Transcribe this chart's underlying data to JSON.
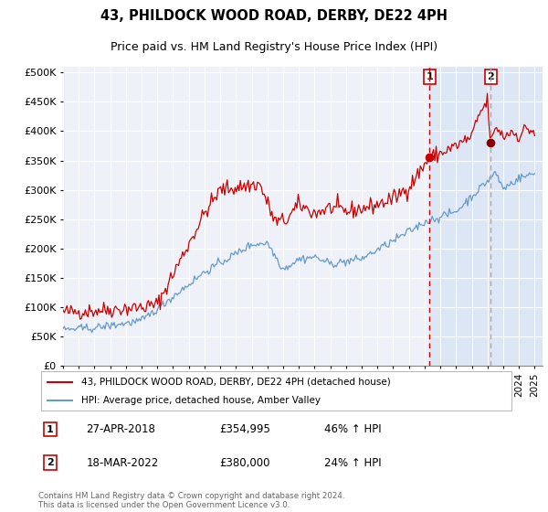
{
  "title": "43, PHILDOCK WOOD ROAD, DERBY, DE22 4PH",
  "subtitle": "Price paid vs. HM Land Registry's House Price Index (HPI)",
  "red_label": "43, PHILDOCK WOOD ROAD, DERBY, DE22 4PH (detached house)",
  "blue_label": "HPI: Average price, detached house, Amber Valley",
  "annotation1_date": "27-APR-2018",
  "annotation1_price": 354995,
  "annotation1_hpi": "46% ↑ HPI",
  "annotation2_date": "18-MAR-2022",
  "annotation2_price": 380000,
  "annotation2_hpi": "24% ↑ HPI",
  "vline1_year": 2018.32,
  "vline2_year": 2022.21,
  "footer": "Contains HM Land Registry data © Crown copyright and database right 2024.\nThis data is licensed under the Open Government Licence v3.0.",
  "background_plot": "#eef2f8",
  "background_shade": "#dde6f5",
  "grid_color": "#ffffff",
  "red_color": "#cc0000",
  "blue_color": "#6699cc",
  "title_fontsize": 10.5,
  "subtitle_fontsize": 9,
  "ylim": [
    0,
    510000
  ],
  "xlim_start": 1995.0,
  "xlim_end": 2025.5
}
